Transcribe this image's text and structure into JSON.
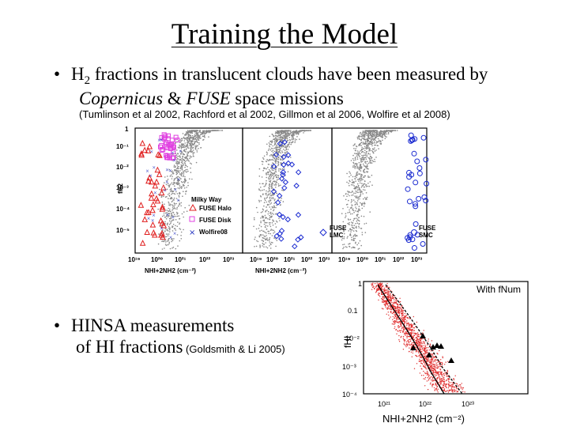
{
  "slide": {
    "title": "Training the Model",
    "bullet1": {
      "line1_pre": "H",
      "line1_sub": "2",
      "line1_post": " fractions in translucent clouds have been measured by",
      "line2_it1": "Copernicus",
      "line2_amp": " & ",
      "line2_it2": "FUSE",
      "line2_post": " space missions"
    },
    "citation1": "(Tumlinson et al 2002, Rachford et al 2002, Gillmon et al 2006, Wolfire et al 2008)",
    "bullet2": {
      "line1": "HINSA measurements",
      "line2_pre": "of HI fractions",
      "line2_cite": " (Goldsmith & Li 2005)"
    }
  },
  "figure1": {
    "ylabel": "fH2",
    "yticks": [
      "1",
      "10⁻¹",
      "10⁻²",
      "10⁻³",
      "10⁻⁴",
      "10⁻⁵"
    ],
    "panel1": {
      "xticks": [
        "10¹⁹",
        "10²⁰",
        "10²¹",
        "10²²",
        "10²³"
      ],
      "xlabel": "NHI+2NH2 (cm⁻²)",
      "legend_title": "Milky Way",
      "legend": [
        "FUSE Halo",
        "FUSE Disk",
        "Wolfire08"
      ]
    },
    "panel2": {
      "xticks": [
        "10¹⁹",
        "10²⁰",
        "10²¹",
        "10²²",
        "10²³"
      ],
      "xlabel": "NHI+2NH2 (cm⁻²)",
      "legend": [
        "FUSE",
        "LMC"
      ]
    },
    "panel3": {
      "xticks": [
        "10¹⁹",
        "10²⁰",
        "10²¹",
        "10²²",
        "10²³"
      ],
      "legend": [
        "FUSE",
        "SMC"
      ]
    }
  },
  "figure2": {
    "label": "With fNum",
    "ylabel": "fHI",
    "yticks": [
      "1",
      "0.1",
      "10⁻²",
      "10⁻³",
      "10⁻⁴"
    ],
    "xticks": [
      "10²¹",
      "10²²",
      "10²³"
    ],
    "xlabel": "NHI+2NH2 (cm⁻²)"
  },
  "colors": {
    "halo": "#e02020",
    "disk": "#e040e0",
    "wolfire": "#2030c0",
    "lmc": "#1a2ad0",
    "scatter": "#808080",
    "red_scatter": "#e03030"
  }
}
